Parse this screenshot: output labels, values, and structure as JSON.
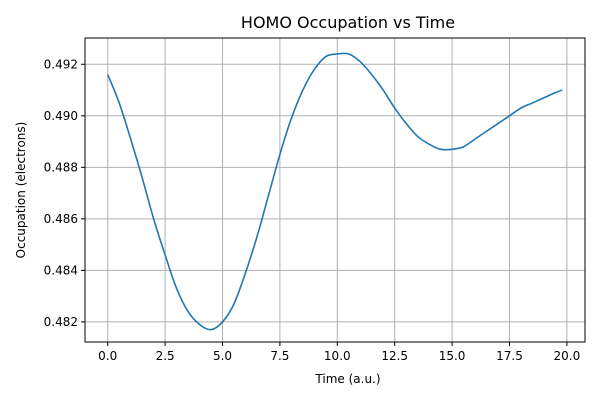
{
  "chart_data": {
    "type": "line",
    "title": "HOMO Occupation vs Time",
    "xlabel": "Time (a.u.)",
    "ylabel": "Occupation (electrons)",
    "xlim": [
      -0.99,
      20.79
    ],
    "ylim": [
      0.48122,
      0.49302
    ],
    "xticks": [
      0.0,
      2.5,
      5.0,
      7.5,
      10.0,
      12.5,
      15.0,
      17.5,
      20.0
    ],
    "xtick_labels": [
      "0.0",
      "2.5",
      "5.0",
      "7.5",
      "10.0",
      "12.5",
      "15.0",
      "17.5",
      "20.0"
    ],
    "yticks": [
      0.482,
      0.484,
      0.486,
      0.488,
      0.49,
      0.492
    ],
    "ytick_labels": [
      "0.482",
      "0.484",
      "0.486",
      "0.488",
      "0.490",
      "0.492"
    ],
    "grid": true,
    "color": "#1f77b4",
    "series": [
      {
        "x": [
          0.0,
          0.5,
          1.0,
          1.5,
          2.0,
          2.5,
          3.0,
          3.5,
          4.0,
          4.5,
          5.0,
          5.5,
          6.0,
          6.5,
          7.0,
          7.5,
          8.0,
          8.5,
          9.0,
          9.5,
          10.0,
          10.5,
          11.0,
          11.5,
          12.0,
          12.5,
          13.0,
          13.5,
          14.0,
          14.5,
          15.0,
          15.5,
          16.0,
          16.5,
          17.0,
          17.5,
          18.0,
          18.5,
          19.0,
          19.5,
          19.8
        ],
        "y": [
          0.4916,
          0.4905,
          0.4891,
          0.4876,
          0.486,
          0.4846,
          0.4833,
          0.4824,
          0.4819,
          0.4817,
          0.482,
          0.4827,
          0.4839,
          0.4853,
          0.4869,
          0.4885,
          0.4899,
          0.491,
          0.4918,
          0.4923,
          0.4924,
          0.4924,
          0.4921,
          0.4916,
          0.491,
          0.4903,
          0.4897,
          0.4892,
          0.4889,
          0.4887,
          0.4887,
          0.4888,
          0.4891,
          0.4894,
          0.4897,
          0.49,
          0.4903,
          0.4905,
          0.4907,
          0.4909,
          0.491
        ]
      }
    ]
  }
}
